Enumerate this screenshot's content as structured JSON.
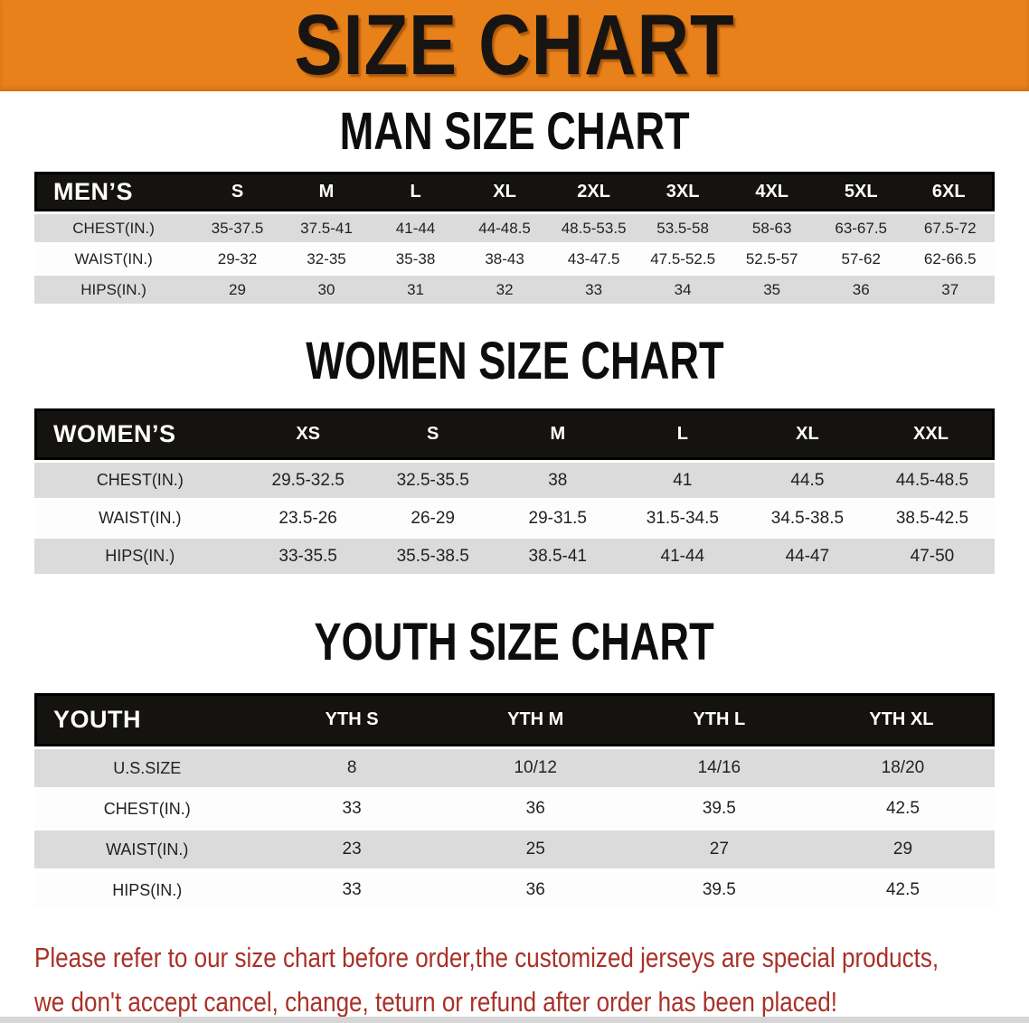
{
  "banner": {
    "title": "SIZE CHART",
    "bg_color": "#E8811A",
    "text_color": "#181411"
  },
  "sections": [
    {
      "title": "MAN SIZE CHART",
      "table": {
        "header_label": "MEN’S",
        "columns": [
          "S",
          "M",
          "L",
          "XL",
          "2XL",
          "3XL",
          "4XL",
          "5XL",
          "6XL"
        ],
        "rows": [
          {
            "label": "CHEST(IN.)",
            "values": [
              "35-37.5",
              "37.5-41",
              "41-44",
              "44-48.5",
              "48.5-53.5",
              "53.5-58",
              "58-63",
              "63-67.5",
              "67.5-72"
            ]
          },
          {
            "label": "WAIST(IN.)",
            "values": [
              "29-32",
              "32-35",
              "35-38",
              "38-43",
              "43-47.5",
              "47.5-52.5",
              "52.5-57",
              "57-62",
              "62-66.5"
            ]
          },
          {
            "label": "HIPS(IN.)",
            "values": [
              "29",
              "30",
              "31",
              "32",
              "33",
              "34",
              "35",
              "36",
              "37"
            ]
          }
        ]
      }
    },
    {
      "title": "WOMEN SIZE CHART",
      "table": {
        "header_label": "WOMEN’S",
        "columns": [
          "XS",
          "S",
          "M",
          "L",
          "XL",
          "XXL"
        ],
        "rows": [
          {
            "label": "CHEST(IN.)",
            "values": [
              "29.5-32.5",
              "32.5-35.5",
              "38",
              "41",
              "44.5",
              "44.5-48.5"
            ]
          },
          {
            "label": "WAIST(IN.)",
            "values": [
              "23.5-26",
              "26-29",
              "29-31.5",
              "31.5-34.5",
              "34.5-38.5",
              "38.5-42.5"
            ]
          },
          {
            "label": "HIPS(IN.)",
            "values": [
              "33-35.5",
              "35.5-38.5",
              "38.5-41",
              "41-44",
              "44-47",
              "47-50"
            ]
          }
        ]
      }
    },
    {
      "title": "YOUTH SIZE CHART",
      "table": {
        "header_label": "YOUTH",
        "columns": [
          "YTH S",
          "YTH M",
          "YTH L",
          "YTH XL"
        ],
        "rows": [
          {
            "label": "U.S.SIZE",
            "values": [
              "8",
              "10/12",
              "14/16",
              "18/20"
            ]
          },
          {
            "label": "CHEST(IN.)",
            "values": [
              "33",
              "36",
              "39.5",
              "42.5"
            ]
          },
          {
            "label": "WAIST(IN.)",
            "values": [
              "23",
              "25",
              "27",
              "29"
            ]
          },
          {
            "label": "HIPS(IN.)",
            "values": [
              "33",
              "36",
              "39.5",
              "42.5"
            ]
          }
        ]
      }
    }
  ],
  "disclaimer": {
    "line1": "Please refer to our size chart before order,the customized jerseys are special products,",
    "line2": "we don't accept cancel, change, teturn or refund after order has been placed!",
    "color": "#A93128"
  }
}
